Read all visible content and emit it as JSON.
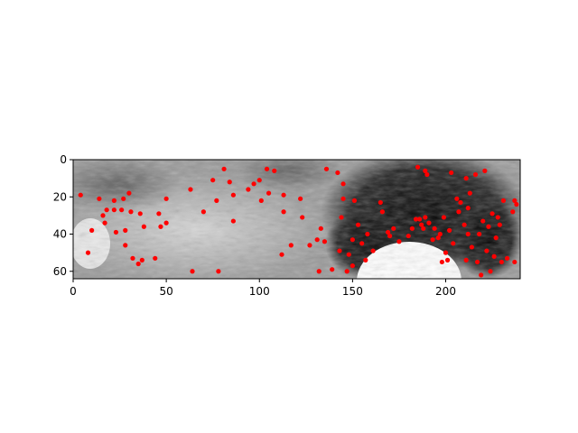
{
  "chart_data": {
    "type": "scatter",
    "title": "",
    "xlabel": "",
    "ylabel": "",
    "xlim": [
      0,
      240
    ],
    "ylim": [
      64,
      0
    ],
    "y_axis_inverted": true,
    "grid": false,
    "background": "grayscale image",
    "marker_color": "#ff0000",
    "x_ticks": [
      "0",
      "50",
      "100",
      "150",
      "200"
    ],
    "y_ticks": [
      "0",
      "20",
      "40",
      "60"
    ],
    "series": [
      {
        "points": [
          [
            4,
            19
          ],
          [
            8,
            50
          ],
          [
            10,
            38
          ],
          [
            14,
            21
          ],
          [
            16,
            30
          ],
          [
            17,
            34
          ],
          [
            18,
            27
          ],
          [
            22,
            22
          ],
          [
            22,
            27
          ],
          [
            23,
            39
          ],
          [
            26,
            27
          ],
          [
            27,
            21
          ],
          [
            28,
            46
          ],
          [
            28,
            38
          ],
          [
            30,
            18
          ],
          [
            31,
            28
          ],
          [
            32,
            53
          ],
          [
            35,
            56
          ],
          [
            36,
            29
          ],
          [
            37,
            54
          ],
          [
            38,
            36
          ],
          [
            44,
            53
          ],
          [
            46,
            29
          ],
          [
            47,
            36
          ],
          [
            50,
            21
          ],
          [
            50,
            34
          ],
          [
            63,
            16
          ],
          [
            64,
            60
          ],
          [
            70,
            28
          ],
          [
            75,
            11
          ],
          [
            77,
            22
          ],
          [
            78,
            60
          ],
          [
            81,
            5
          ],
          [
            84,
            12
          ],
          [
            86,
            19
          ],
          [
            86,
            33
          ],
          [
            94,
            16
          ],
          [
            97,
            13
          ],
          [
            100,
            11
          ],
          [
            101,
            22
          ],
          [
            104,
            5
          ],
          [
            105,
            18
          ],
          [
            108,
            6
          ],
          [
            112,
            51
          ],
          [
            113,
            19
          ],
          [
            113,
            28
          ],
          [
            117,
            46
          ],
          [
            122,
            21
          ],
          [
            123,
            31
          ],
          [
            127,
            46
          ],
          [
            131,
            43
          ],
          [
            132,
            60
          ],
          [
            133,
            37
          ],
          [
            135,
            44
          ],
          [
            136,
            5
          ],
          [
            139,
            59
          ],
          [
            142,
            7
          ],
          [
            143,
            49
          ],
          [
            144,
            31
          ],
          [
            145,
            21
          ],
          [
            145,
            13
          ],
          [
            147,
            60
          ],
          [
            148,
            51
          ],
          [
            150,
            57
          ],
          [
            150,
            43
          ],
          [
            151,
            22
          ],
          [
            153,
            35
          ],
          [
            155,
            45
          ],
          [
            157,
            54
          ],
          [
            158,
            40
          ],
          [
            161,
            49
          ],
          [
            165,
            23
          ],
          [
            166,
            28
          ],
          [
            169,
            39
          ],
          [
            170,
            41
          ],
          [
            172,
            37
          ],
          [
            175,
            44
          ],
          [
            180,
            41
          ],
          [
            182,
            37
          ],
          [
            184,
            32
          ],
          [
            185,
            4
          ],
          [
            186,
            32
          ],
          [
            187,
            35
          ],
          [
            188,
            37
          ],
          [
            189,
            6
          ],
          [
            189,
            31
          ],
          [
            190,
            8
          ],
          [
            191,
            34
          ],
          [
            193,
            43
          ],
          [
            194,
            37
          ],
          [
            196,
            42
          ],
          [
            197,
            40
          ],
          [
            198,
            55
          ],
          [
            199,
            31
          ],
          [
            200,
            50
          ],
          [
            201,
            54
          ],
          [
            202,
            38
          ],
          [
            203,
            7
          ],
          [
            204,
            45
          ],
          [
            206,
            21
          ],
          [
            207,
            28
          ],
          [
            208,
            23
          ],
          [
            210,
            35
          ],
          [
            211,
            54
          ],
          [
            211,
            10
          ],
          [
            212,
            40
          ],
          [
            212,
            26
          ],
          [
            213,
            18
          ],
          [
            214,
            47
          ],
          [
            216,
            8
          ],
          [
            217,
            55
          ],
          [
            218,
            40
          ],
          [
            219,
            62
          ],
          [
            220,
            33
          ],
          [
            221,
            6
          ],
          [
            222,
            49
          ],
          [
            223,
            36
          ],
          [
            224,
            60
          ],
          [
            225,
            29
          ],
          [
            226,
            52
          ],
          [
            227,
            42
          ],
          [
            228,
            31
          ],
          [
            229,
            35
          ],
          [
            230,
            55
          ],
          [
            231,
            22
          ],
          [
            233,
            53
          ],
          [
            236,
            28
          ],
          [
            237,
            22
          ],
          [
            237,
            55
          ],
          [
            238,
            24
          ]
        ]
      }
    ]
  }
}
